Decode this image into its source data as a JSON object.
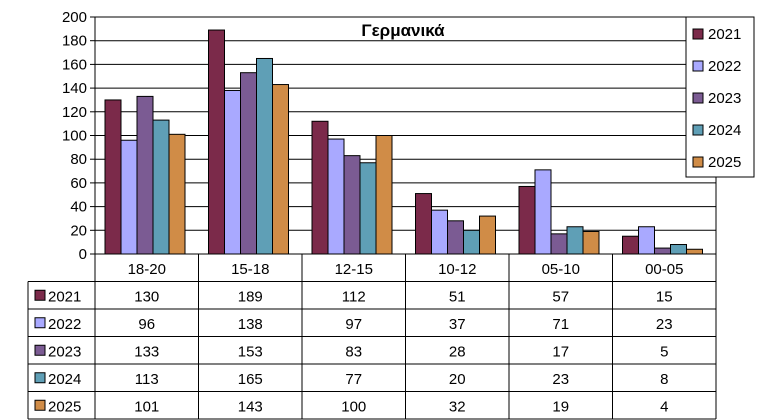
{
  "chart_data": {
    "type": "bar",
    "title": "Γερμανικά",
    "categories": [
      "18-20",
      "15-18",
      "12-15",
      "10-12",
      "05-10",
      "00-05"
    ],
    "series": [
      {
        "name": "2021",
        "color": "#7b2a4a",
        "values": [
          130,
          189,
          112,
          51,
          57,
          15
        ]
      },
      {
        "name": "2022",
        "color": "#a9a9ff",
        "values": [
          96,
          138,
          97,
          37,
          71,
          23
        ]
      },
      {
        "name": "2023",
        "color": "#7b5b93",
        "values": [
          133,
          153,
          83,
          28,
          17,
          5
        ]
      },
      {
        "name": "2024",
        "color": "#5f9fb6",
        "values": [
          113,
          165,
          77,
          20,
          23,
          8
        ]
      },
      {
        "name": "2025",
        "color": "#d08c47",
        "values": [
          101,
          143,
          100,
          32,
          19,
          4
        ]
      }
    ],
    "ylim": [
      0,
      200
    ],
    "yticks": [
      0,
      20,
      40,
      60,
      80,
      100,
      120,
      140,
      160,
      180,
      200
    ],
    "grid": true,
    "legend_position": "right",
    "data_table": true
  }
}
